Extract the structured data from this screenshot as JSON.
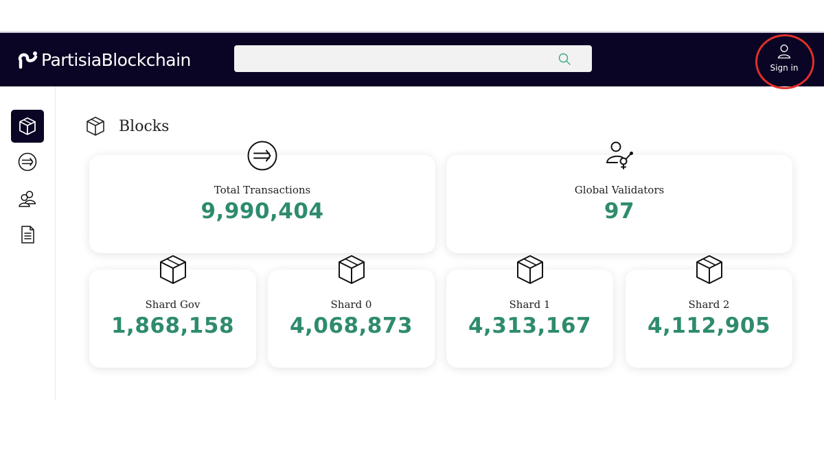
{
  "header": {
    "logo_text": "PartisiaBlockchain",
    "search": {
      "value": "",
      "placeholder": ""
    },
    "sign_in_label": "Sign in"
  },
  "sidebar": {
    "items": [
      {
        "id": "blocks",
        "icon": "cube-icon",
        "active": true
      },
      {
        "id": "transactions",
        "icon": "transfer-icon",
        "active": false
      },
      {
        "id": "validators",
        "icon": "users-icon",
        "active": false
      },
      {
        "id": "contracts",
        "icon": "document-icon",
        "active": false
      }
    ]
  },
  "main": {
    "title": "Blocks",
    "summary_cards": [
      {
        "icon": "transfer-icon",
        "label": "Total Transactions",
        "value": "9,990,404"
      },
      {
        "icon": "validators-icon",
        "label": "Global Validators",
        "value": "97"
      }
    ],
    "shard_cards": [
      {
        "icon": "cube-icon",
        "label": "Shard Gov",
        "value": "1,868,158"
      },
      {
        "icon": "cube-icon",
        "label": "Shard 0",
        "value": "4,068,873"
      },
      {
        "icon": "cube-icon",
        "label": "Shard 1",
        "value": "4,313,167"
      },
      {
        "icon": "cube-icon",
        "label": "Shard 2",
        "value": "4,112,905"
      }
    ]
  },
  "colors": {
    "header_bg": "#0a0524",
    "value_green": "#2e8b6e",
    "highlight_red": "#e0302a"
  }
}
